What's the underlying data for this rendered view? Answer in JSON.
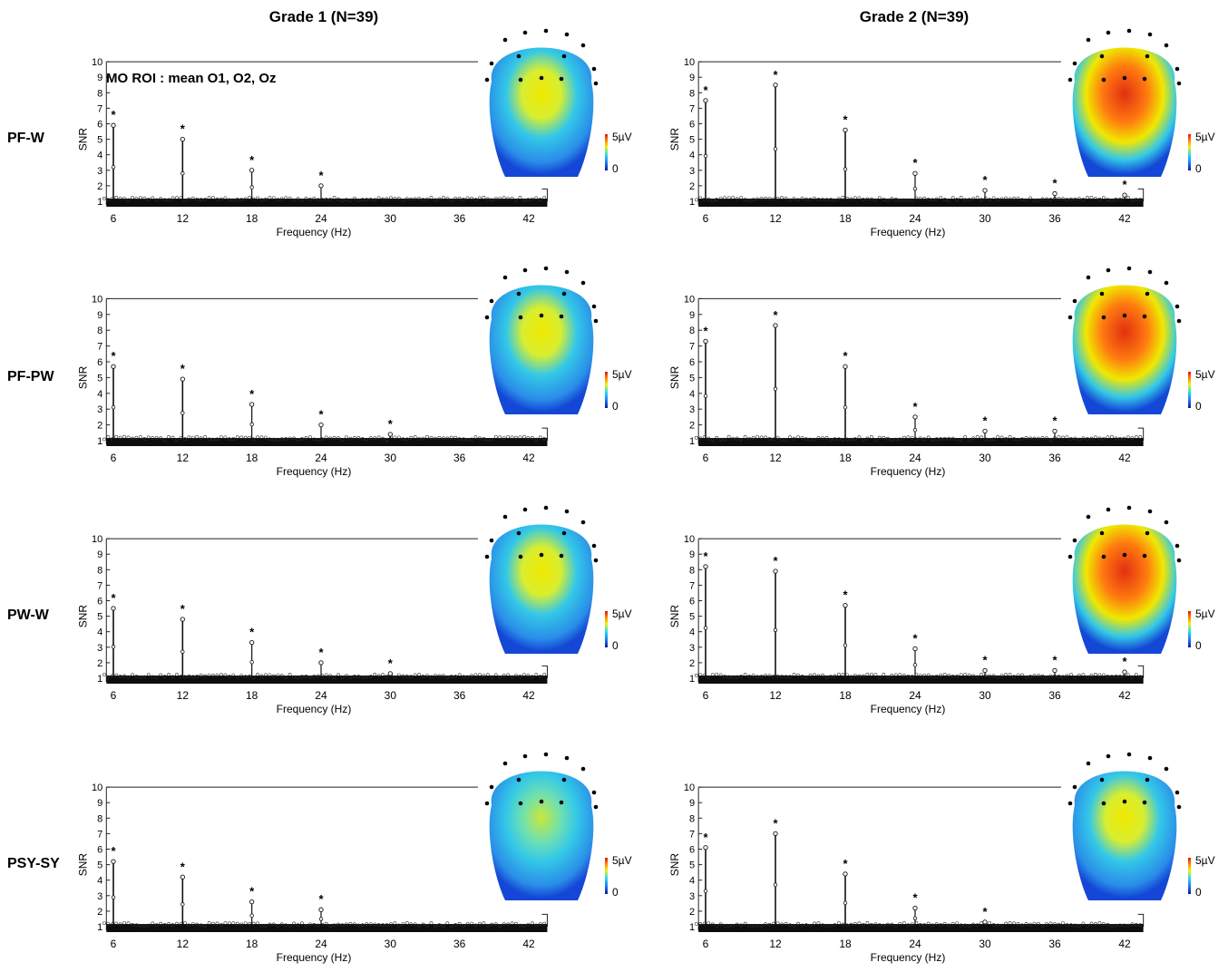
{
  "columns": [
    "Grade 1 (N=39)",
    "Grade 2 (N=39)"
  ],
  "rows": [
    "PF-W",
    "PF-PW",
    "PW-W",
    "PSY-SY"
  ],
  "roi_label": "MO ROI : mean O1, O2, Oz",
  "colorbar": {
    "max_label": "5µV",
    "min_label": "0",
    "colors": [
      "#0a1aa8",
      "#1e8bff",
      "#2fe0e6",
      "#f5f000",
      "#ff8a00",
      "#e41010"
    ]
  },
  "topomap_colors": {
    "background": "#1447d6",
    "mid": "#33c8e8",
    "high": "#f0e800",
    "peak": "#e23010"
  },
  "chart_data": [
    {
      "type": "stem",
      "group": "Grade 1 (N=39)",
      "condition": "PF-W",
      "title": "",
      "xlabel": "Frequency (Hz)",
      "ylabel": "SNR",
      "xticks": [
        6,
        12,
        18,
        24,
        30,
        36,
        42
      ],
      "yticks": [
        1,
        2,
        3,
        4,
        5,
        6,
        7,
        8,
        9,
        10
      ],
      "ylim": [
        1,
        10
      ],
      "xlim": [
        5,
        44
      ],
      "significance_marker": "*",
      "peaks": [
        {
          "x": 6,
          "y": 5.9,
          "sig": true
        },
        {
          "x": 12,
          "y": 5.0,
          "sig": true
        },
        {
          "x": 18,
          "y": 3.0,
          "sig": true
        },
        {
          "x": 24,
          "y": 2.0,
          "sig": true
        }
      ],
      "topomap_intensity": 0.55
    },
    {
      "type": "stem",
      "group": "Grade 2 (N=39)",
      "condition": "PF-W",
      "title": "",
      "xlabel": "Frequency (Hz)",
      "ylabel": "SNR",
      "xticks": [
        6,
        12,
        18,
        24,
        30,
        36,
        42
      ],
      "yticks": [
        1,
        2,
        3,
        4,
        5,
        6,
        7,
        8,
        9,
        10
      ],
      "ylim": [
        1,
        10
      ],
      "xlim": [
        5,
        44
      ],
      "significance_marker": "*",
      "peaks": [
        {
          "x": 6,
          "y": 7.5,
          "sig": true
        },
        {
          "x": 12,
          "y": 8.5,
          "sig": true
        },
        {
          "x": 18,
          "y": 5.6,
          "sig": true
        },
        {
          "x": 24,
          "y": 2.8,
          "sig": true
        },
        {
          "x": 30,
          "y": 1.7,
          "sig": true
        },
        {
          "x": 36,
          "y": 1.5,
          "sig": true
        },
        {
          "x": 42,
          "y": 1.4,
          "sig": true
        }
      ],
      "topomap_intensity": 0.9
    },
    {
      "type": "stem",
      "group": "Grade 1 (N=39)",
      "condition": "PF-PW",
      "title": "",
      "xlabel": "Frequency (Hz)",
      "ylabel": "SNR",
      "xticks": [
        6,
        12,
        18,
        24,
        30,
        36,
        42
      ],
      "yticks": [
        1,
        2,
        3,
        4,
        5,
        6,
        7,
        8,
        9,
        10
      ],
      "ylim": [
        1,
        10
      ],
      "xlim": [
        5,
        44
      ],
      "significance_marker": "*",
      "peaks": [
        {
          "x": 6,
          "y": 5.7,
          "sig": true
        },
        {
          "x": 12,
          "y": 4.9,
          "sig": true
        },
        {
          "x": 18,
          "y": 3.3,
          "sig": true
        },
        {
          "x": 24,
          "y": 2.0,
          "sig": true
        },
        {
          "x": 30,
          "y": 1.4,
          "sig": true
        }
      ],
      "topomap_intensity": 0.55
    },
    {
      "type": "stem",
      "group": "Grade 2 (N=39)",
      "condition": "PF-PW",
      "title": "",
      "xlabel": "Frequency (Hz)",
      "ylabel": "SNR",
      "xticks": [
        6,
        12,
        18,
        24,
        30,
        36,
        42
      ],
      "yticks": [
        1,
        2,
        3,
        4,
        5,
        6,
        7,
        8,
        9,
        10
      ],
      "ylim": [
        1,
        10
      ],
      "xlim": [
        5,
        44
      ],
      "significance_marker": "*",
      "peaks": [
        {
          "x": 6,
          "y": 7.3,
          "sig": true
        },
        {
          "x": 12,
          "y": 8.3,
          "sig": true
        },
        {
          "x": 18,
          "y": 5.7,
          "sig": true
        },
        {
          "x": 24,
          "y": 2.5,
          "sig": true
        },
        {
          "x": 30,
          "y": 1.6,
          "sig": true
        },
        {
          "x": 36,
          "y": 1.6,
          "sig": true
        }
      ],
      "topomap_intensity": 0.85
    },
    {
      "type": "stem",
      "group": "Grade 1 (N=39)",
      "condition": "PW-W",
      "title": "",
      "xlabel": "Frequency (Hz)",
      "ylabel": "SNR",
      "xticks": [
        6,
        12,
        18,
        24,
        30,
        36,
        42
      ],
      "yticks": [
        1,
        2,
        3,
        4,
        5,
        6,
        7,
        8,
        9,
        10
      ],
      "ylim": [
        1,
        10
      ],
      "xlim": [
        5,
        44
      ],
      "significance_marker": "*",
      "peaks": [
        {
          "x": 6,
          "y": 5.5,
          "sig": true
        },
        {
          "x": 12,
          "y": 4.8,
          "sig": true
        },
        {
          "x": 18,
          "y": 3.3,
          "sig": true
        },
        {
          "x": 24,
          "y": 2.0,
          "sig": true
        },
        {
          "x": 30,
          "y": 1.3,
          "sig": true
        }
      ],
      "topomap_intensity": 0.5
    },
    {
      "type": "stem",
      "group": "Grade 2 (N=39)",
      "condition": "PW-W",
      "title": "",
      "xlabel": "Frequency (Hz)",
      "ylabel": "SNR",
      "xticks": [
        6,
        12,
        18,
        24,
        30,
        36,
        42
      ],
      "yticks": [
        1,
        2,
        3,
        4,
        5,
        6,
        7,
        8,
        9,
        10
      ],
      "ylim": [
        1,
        10
      ],
      "xlim": [
        5,
        44
      ],
      "significance_marker": "*",
      "peaks": [
        {
          "x": 6,
          "y": 8.2,
          "sig": true
        },
        {
          "x": 12,
          "y": 7.9,
          "sig": true
        },
        {
          "x": 18,
          "y": 5.7,
          "sig": true
        },
        {
          "x": 24,
          "y": 2.9,
          "sig": true
        },
        {
          "x": 30,
          "y": 1.5,
          "sig": true
        },
        {
          "x": 36,
          "y": 1.5,
          "sig": true
        },
        {
          "x": 42,
          "y": 1.4,
          "sig": true
        }
      ],
      "topomap_intensity": 0.95
    },
    {
      "type": "stem",
      "group": "Grade 1 (N=39)",
      "condition": "PSY-SY",
      "title": "",
      "xlabel": "Frequency (Hz)",
      "ylabel": "SNR",
      "xticks": [
        6,
        12,
        18,
        24,
        30,
        36,
        42
      ],
      "yticks": [
        1,
        2,
        3,
        4,
        5,
        6,
        7,
        8,
        9,
        10
      ],
      "ylim": [
        1,
        10
      ],
      "xlim": [
        5,
        44
      ],
      "significance_marker": "*",
      "peaks": [
        {
          "x": 6,
          "y": 5.2,
          "sig": true
        },
        {
          "x": 12,
          "y": 4.2,
          "sig": true
        },
        {
          "x": 18,
          "y": 2.6,
          "sig": true
        },
        {
          "x": 24,
          "y": 2.1,
          "sig": true
        }
      ],
      "topomap_intensity": 0.35
    },
    {
      "type": "stem",
      "group": "Grade 2 (N=39)",
      "condition": "PSY-SY",
      "title": "",
      "xlabel": "Frequency (Hz)",
      "ylabel": "SNR",
      "xticks": [
        6,
        12,
        18,
        24,
        30,
        36,
        42
      ],
      "yticks": [
        1,
        2,
        3,
        4,
        5,
        6,
        7,
        8,
        9,
        10
      ],
      "ylim": [
        1,
        10
      ],
      "xlim": [
        5,
        44
      ],
      "significance_marker": "*",
      "peaks": [
        {
          "x": 6,
          "y": 6.1,
          "sig": true
        },
        {
          "x": 12,
          "y": 7.0,
          "sig": true
        },
        {
          "x": 18,
          "y": 4.4,
          "sig": true
        },
        {
          "x": 24,
          "y": 2.2,
          "sig": true
        },
        {
          "x": 30,
          "y": 1.3,
          "sig": true
        }
      ],
      "topomap_intensity": 0.6
    }
  ]
}
